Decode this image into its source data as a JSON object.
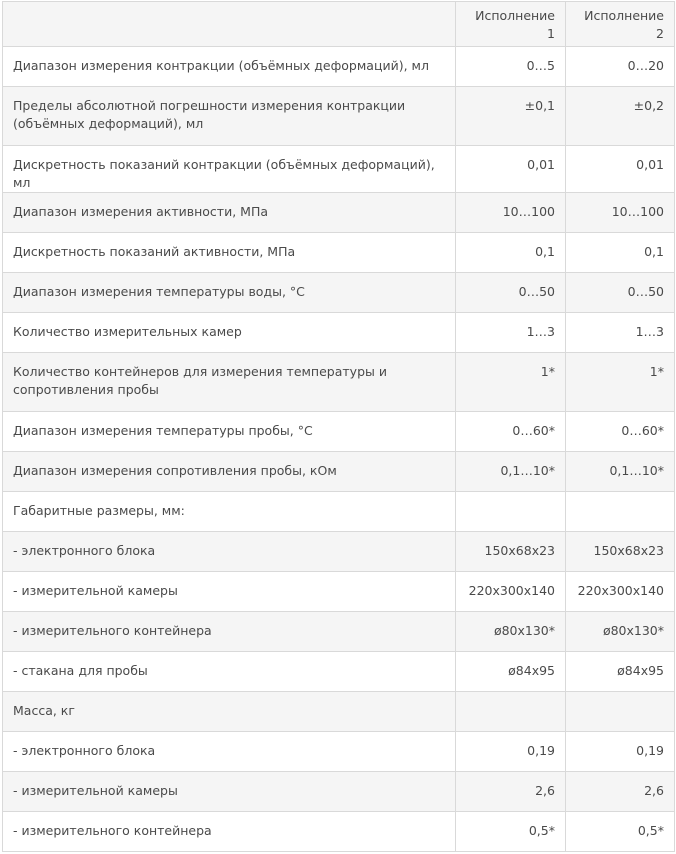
{
  "header": {
    "col1": "Исполнение 1",
    "col2": "Исполнение 2"
  },
  "rows": [
    {
      "param": "Диапазон измерения контракции (объёмных деформаций), мл",
      "v1": "0…5",
      "v2": "0…20"
    },
    {
      "param": "Пределы абсолютной погрешности измерения контракции (объёмных деформаций), мл",
      "v1": "±0,1",
      "v2": "±0,2"
    },
    {
      "param": "Дискретность показаний контракции (объёмных деформаций), мл",
      "v1": "0,01",
      "v2": "0,01"
    },
    {
      "param": "Диапазон измерения активности, МПа",
      "v1": "10…100",
      "v2": "10…100"
    },
    {
      "param": "Дискретность показаний активности, МПа",
      "v1": "0,1",
      "v2": "0,1"
    },
    {
      "param": "Диапазон измерения температуры воды, °С",
      "v1": "0…50",
      "v2": "0…50"
    },
    {
      "param": "Количество измерительных камер",
      "v1": "1…3",
      "v2": "1…3"
    },
    {
      "param": "Количество контейнеров для измерения температуры и сопротивления пробы",
      "v1": "1*",
      "v2": "1*"
    },
    {
      "param": "Диапазон измерения температуры пробы, °С",
      "v1": "0…60*",
      "v2": "0…60*"
    },
    {
      "param": "Диапазон измерения сопротивления пробы, кОм",
      "v1": "0,1…10*",
      "v2": "0,1…10*"
    },
    {
      "param": "Габаритные размеры, мм:",
      "v1": "",
      "v2": ""
    },
    {
      "param": "- электронного блока",
      "v1": "150х68х23",
      "v2": "150х68х23"
    },
    {
      "param": "- измерительной камеры",
      "v1": "220х300х140",
      "v2": "220х300х140"
    },
    {
      "param": "- измерительного контейнера",
      "v1": "ø80х130*",
      "v2": "ø80х130*"
    },
    {
      "param": "- стакана для пробы",
      "v1": "ø84х95",
      "v2": "ø84х95"
    },
    {
      "param": "Масса, кг",
      "v1": "",
      "v2": ""
    },
    {
      "param": "- электронного блока",
      "v1": "0,19",
      "v2": "0,19"
    },
    {
      "param": "- измерительной камеры",
      "v1": "2,6",
      "v2": "2,6"
    },
    {
      "param": "- измерительного контейнера",
      "v1": "0,5*",
      "v2": "0,5*"
    }
  ]
}
